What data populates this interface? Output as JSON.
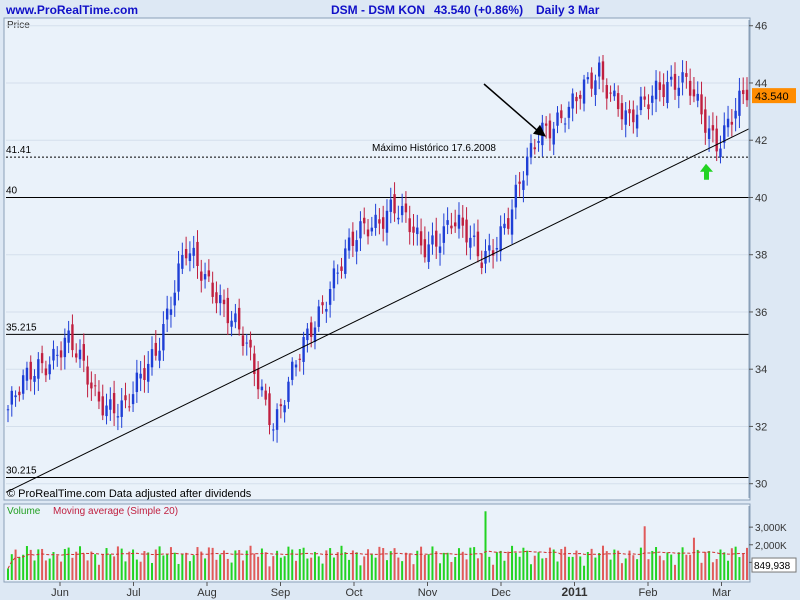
{
  "header": {
    "site": "www.ProRealTime.com",
    "instrument": "DSM - DSM KON",
    "price": "43.540 (+0.86%)",
    "period": "Daily  3 Mar"
  },
  "colors": {
    "background": "#dde8f4",
    "panel": "#eaf2fa",
    "up_candle": "#1f3fd6",
    "down_candle": "#c01f3f",
    "volume_up": "#22d322",
    "volume_down": "#e05a5a",
    "header_text": "#1010c8",
    "arrow_green": "#22d322",
    "price_tag": "#ff8c00"
  },
  "chart_data": [
    {
      "type": "candlestick",
      "title": "DSM - DSM KON",
      "ylabel": "Price",
      "ylim": [
        29.5,
        46.2
      ],
      "yticks": [
        30,
        32,
        34,
        36,
        38,
        40,
        42,
        44,
        46
      ],
      "x_tick_labels": [
        "Jun",
        "Jul",
        "Aug",
        "Sep",
        "Oct",
        "Nov",
        "Dec",
        "2011",
        "Feb",
        "Mar"
      ],
      "last_price": "43.540",
      "closes_sample": [
        32.6,
        34.1,
        35.0,
        33.1,
        32.5,
        34.8,
        38.0,
        36.9,
        34.8,
        32.2,
        34.7,
        37.3,
        38.8,
        39.8,
        38.2,
        39.2,
        37.9,
        39.3,
        42.5,
        42.9,
        44.6,
        42.4,
        44.1,
        43.8,
        42.0,
        43.54
      ],
      "horizontal_levels": [
        {
          "value": 41.41,
          "label": "41.41",
          "style": "dashed"
        },
        {
          "value": 40,
          "label": "40",
          "style": "solid"
        },
        {
          "value": 35.215,
          "label": "35.215",
          "style": "solid"
        },
        {
          "value": 30.215,
          "label": "30.215",
          "style": "solid"
        }
      ],
      "trendline": {
        "from": [
          0,
          29.7
        ],
        "to": [
          1,
          42.4
        ]
      },
      "annotations": [
        {
          "text": "Máximo Histórico 17.6.2008",
          "type": "label"
        },
        {
          "type": "arrow",
          "color": "black"
        },
        {
          "type": "arrow-up",
          "color": "green"
        }
      ],
      "footer_note": "© ProRealTime.com  Data adjusted after dividends"
    },
    {
      "type": "bar",
      "title": "Volume",
      "series": [
        {
          "name": "Moving average (Simple 20)"
        }
      ],
      "yticks": [
        "3,000K",
        "2,000K",
        "1,000K"
      ],
      "last_value": "849,938"
    }
  ]
}
